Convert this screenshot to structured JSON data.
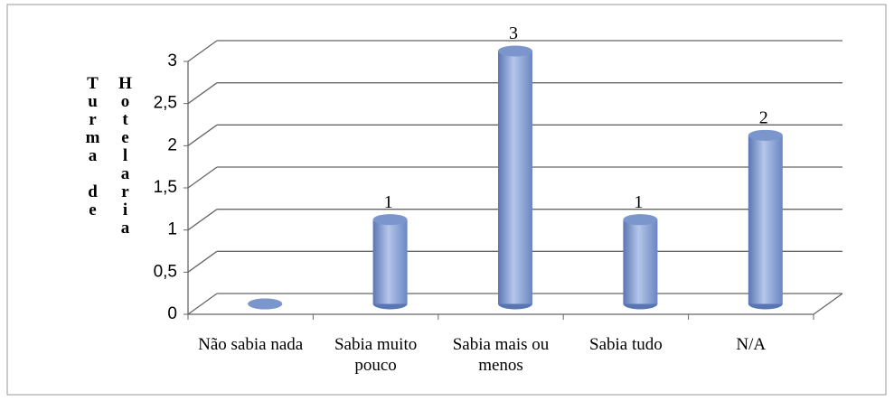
{
  "chart_data": {
    "type": "bar3d",
    "y_label": "Turma de Hotelaria",
    "categories": [
      "Não sabia nada",
      "Sabia muito pouco",
      "Sabia mais ou menos",
      "Sabia tudo",
      "N/A"
    ],
    "values": [
      0,
      1,
      3,
      1,
      2
    ],
    "value_labels": [
      null,
      "1",
      "3",
      "1",
      "2"
    ],
    "color": "#8fa8d8",
    "ylim": [
      0,
      3
    ],
    "yticks": [
      0,
      {
        "value": 0.5,
        "label": "0,5"
      },
      1,
      {
        "value": 1.5,
        "label": "1,5"
      },
      2,
      {
        "value": 2.5,
        "label": "2,5"
      },
      3
    ],
    "grid": true
  }
}
